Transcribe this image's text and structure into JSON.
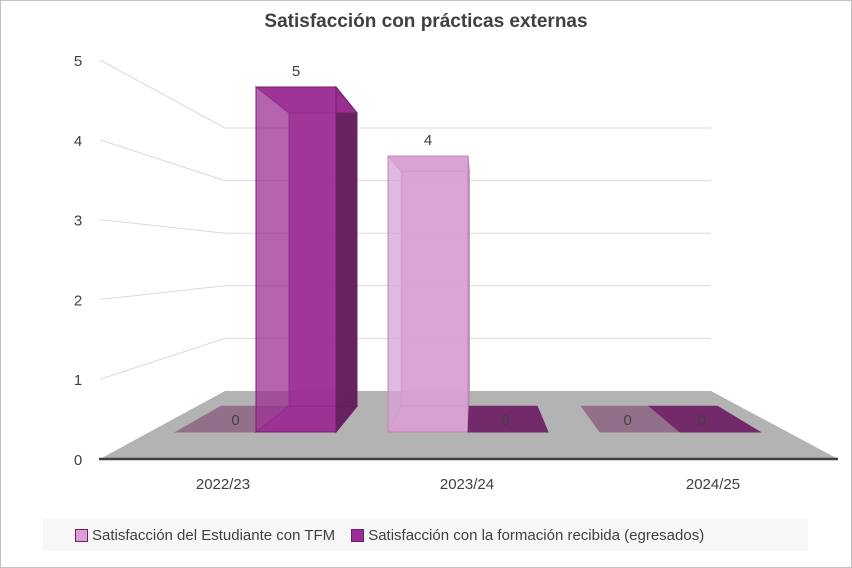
{
  "chart_data": {
    "type": "bar",
    "subtype": "3d-clustered-column",
    "title": "Satisfacción con prácticas externas",
    "categories": [
      "2022/23",
      "2023/24",
      "2024/25"
    ],
    "series": [
      {
        "name": "Satisfacción del Estudiante con TFM",
        "values": [
          0,
          4,
          0
        ],
        "color": "#d9a0d3",
        "flat_color": "#93708a"
      },
      {
        "name": "Satisfacción con la formación recibida (egresados)",
        "values": [
          5,
          0,
          0
        ],
        "color": "#9c2f94",
        "flat_color": "#722a6b"
      }
    ],
    "data_labels": [
      [
        "0",
        "4",
        "0"
      ],
      [
        "5",
        "0",
        "0"
      ]
    ],
    "y_ticks": [
      "0",
      "1",
      "2",
      "3",
      "4",
      "5"
    ],
    "ylim": [
      0,
      5
    ],
    "grid": true,
    "legend": "bottom",
    "floor_color": "#b3b3b3"
  }
}
